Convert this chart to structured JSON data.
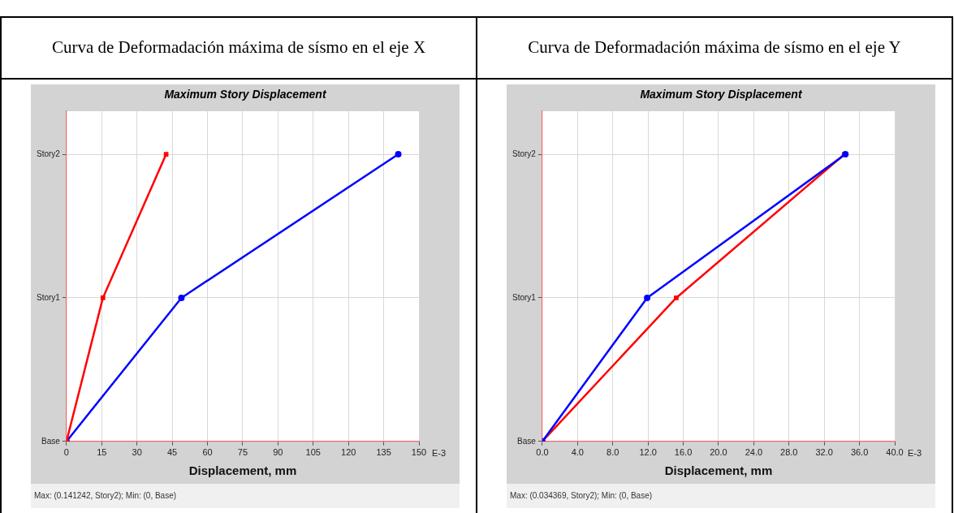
{
  "chart_data": [
    {
      "type": "line",
      "orientation": "horizontal",
      "title": "Curva de Deformadación máxima de sísmo en el eje X",
      "subtitle": "Maximum Story Displacement",
      "xlabel": "Displacement, mm",
      "categories": [
        "Story2",
        "Story1",
        "Base"
      ],
      "xlim": [
        0,
        150
      ],
      "xticks": [
        0,
        15,
        30,
        45,
        60,
        75,
        90,
        105,
        120,
        135,
        150
      ],
      "grid": true,
      "legend": false,
      "line_style": "solid",
      "series": [
        {
          "color": "#ff0000",
          "marker": "square",
          "values": [
            42.4,
            15.5,
            0
          ]
        },
        {
          "color": "#0000ff",
          "marker": "circle",
          "values": [
            141.2,
            48.9,
            0
          ]
        }
      ],
      "annotations": [
        "E-3",
        "Max: (0.141242, Story2);   Min: (0, Base)"
      ]
    },
    {
      "type": "line",
      "orientation": "horizontal",
      "title": "Curva de Deformadación máxima de sísmo en el eje Y",
      "subtitle": "Maximum Story Displacement",
      "xlabel": "Displacement, mm",
      "categories": [
        "Story2",
        "Story1",
        "Base"
      ],
      "xlim": [
        0,
        40
      ],
      "xticks": [
        {
          "value": 0,
          "label": "0.0"
        },
        {
          "value": 4,
          "label": "4.0"
        },
        {
          "value": 8,
          "label": "8.0"
        },
        {
          "value": 12,
          "label": "12.0"
        },
        {
          "value": 16,
          "label": "16.0"
        },
        {
          "value": 20,
          "label": "20.0"
        },
        {
          "value": 24,
          "label": "24.0"
        },
        {
          "value": 28,
          "label": "28.0"
        },
        {
          "value": 32,
          "label": "32.0"
        },
        {
          "value": 36,
          "label": "36.0"
        },
        {
          "value": 40,
          "label": "40.0"
        }
      ],
      "grid": true,
      "legend": false,
      "line_style": "solid",
      "series": [
        {
          "color": "#0000ff",
          "marker": "circle",
          "values": [
            34.4,
            11.9,
            0
          ]
        },
        {
          "color": "#ff0000",
          "marker": "square",
          "values": [
            34.3,
            15.2,
            0
          ]
        }
      ],
      "annotations": [
        "E-3",
        "Max: (0.034369, Story2);   Min: (0, Base)"
      ]
    }
  ]
}
